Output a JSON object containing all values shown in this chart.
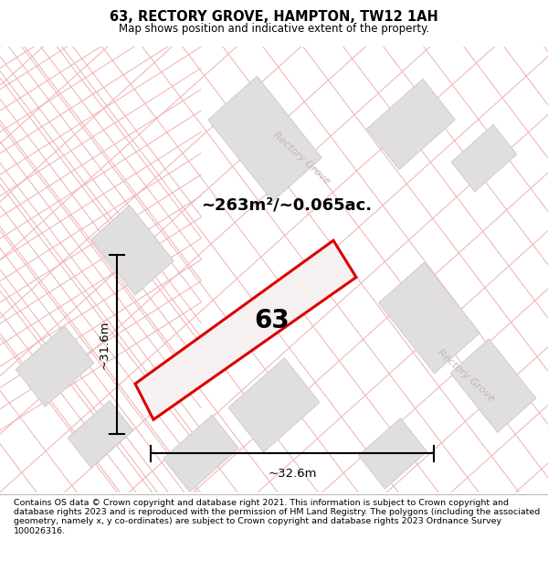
{
  "title": "63, RECTORY GROVE, HAMPTON, TW12 1AH",
  "subtitle": "Map shows position and indicative extent of the property.",
  "area_text": "~263m²/~0.065ac.",
  "plot_number": "63",
  "dim_width": "~32.6m",
  "dim_height": "~31.6m",
  "bg_color": "#ffffff",
  "map_bg": "#ffffff",
  "footer_text": "Contains OS data © Crown copyright and database right 2021. This information is subject to Crown copyright and database rights 2023 and is reproduced with the permission of HM Land Registry. The polygons (including the associated geometry, namely x, y co-ordinates) are subject to Crown copyright and database rights 2023 Ordnance Survey 100026316.",
  "street_color": "#f0b8b8",
  "plot_line_color": "#dd0000",
  "plot_fill_color": "#f7f0f0",
  "road_label_color": "#c0b8b8",
  "gray_block_color": "#e0dede",
  "gray_block_edge": "#d0cccc"
}
